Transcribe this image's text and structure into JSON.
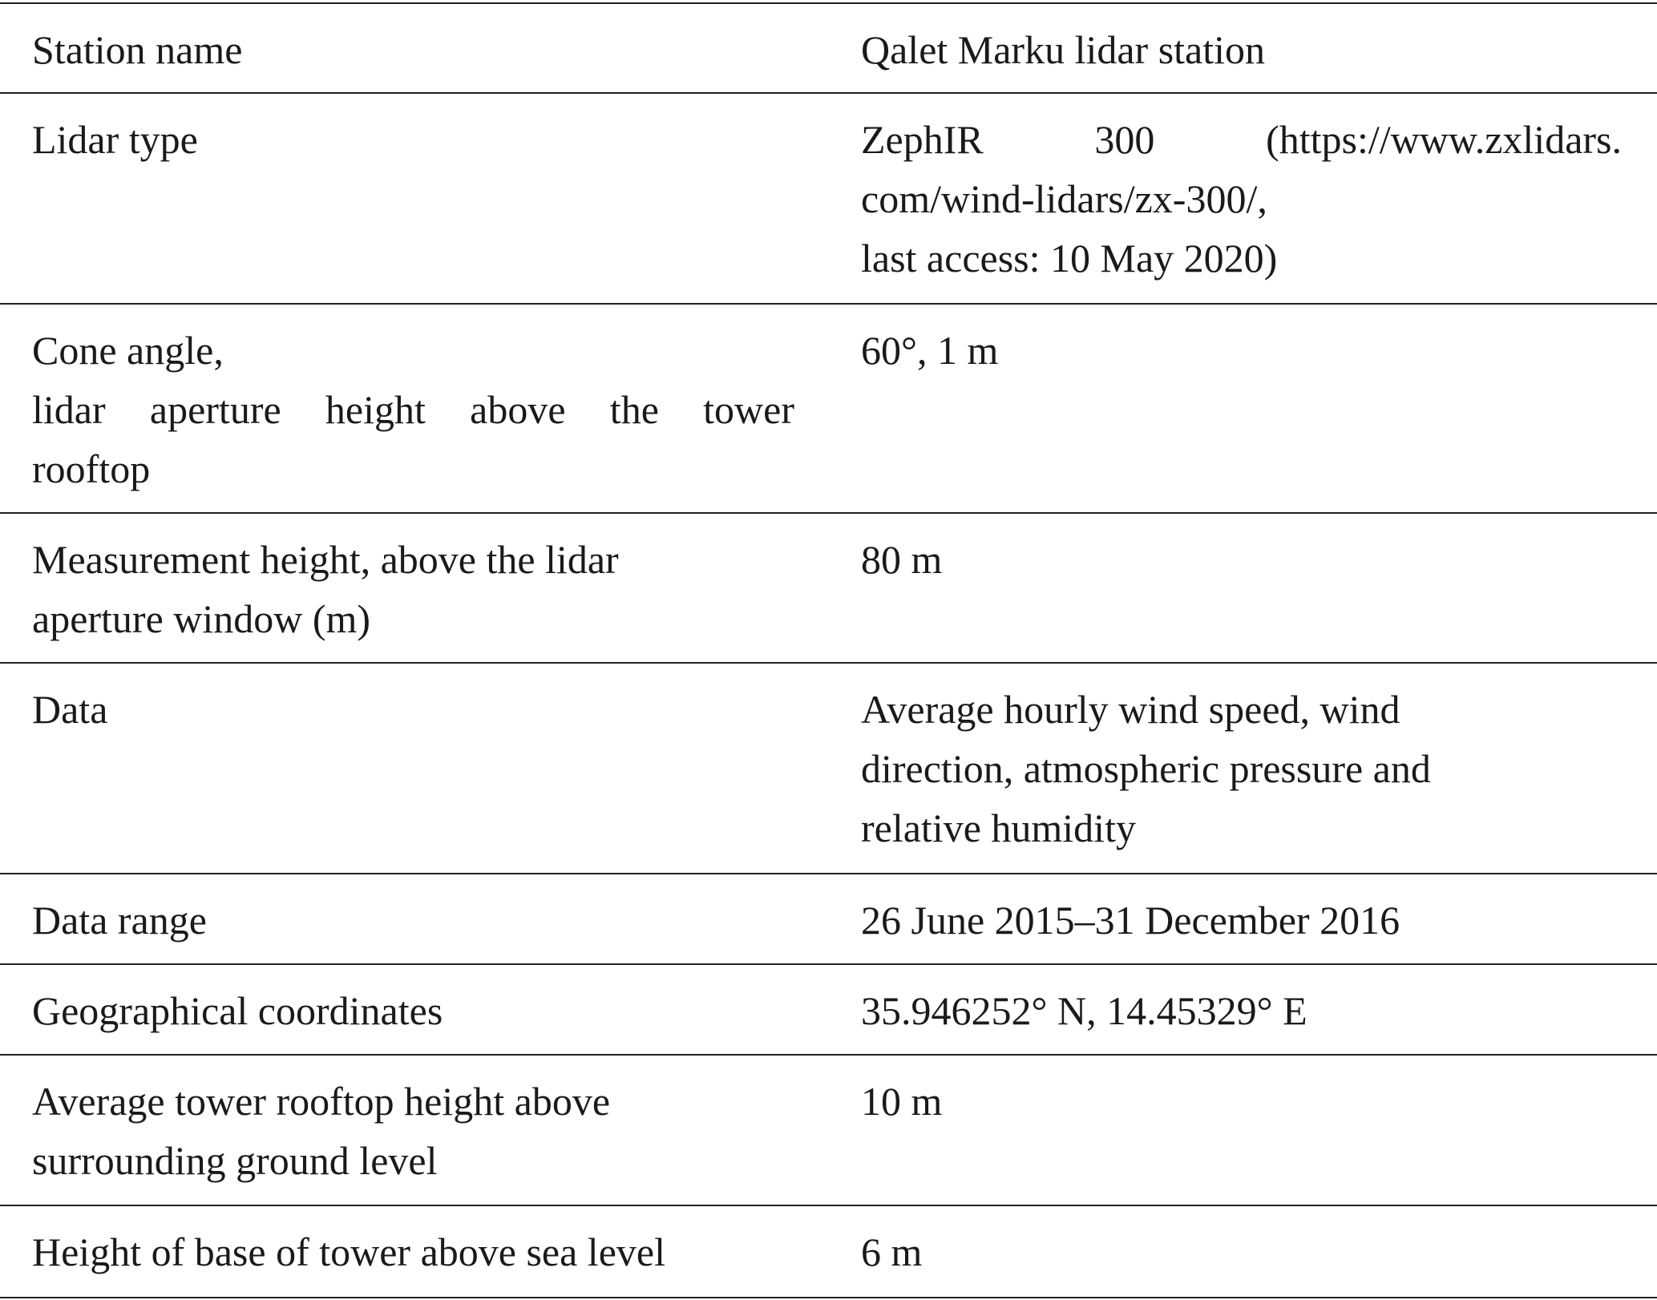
{
  "table": {
    "rows": [
      [
        [
          "Station name"
        ],
        [
          "Qalet Marku lidar station"
        ]
      ],
      [
        [
          "Lidar type"
        ],
        [
          "ZephIR 300 (https://www.zxlidars.",
          "com/wind-lidars/zx-300/,",
          "last access: 10 May 2020)"
        ]
      ],
      [
        [
          "Cone angle,",
          "lidar aperture height above the tower",
          "rooftop"
        ],
        [
          "60°, 1 m"
        ]
      ],
      [
        [
          "Measurement height, above the lidar",
          "aperture window (m)"
        ],
        [
          "80 m"
        ]
      ],
      [
        [
          "Data"
        ],
        [
          "Average hourly wind speed, wind",
          "direction, atmospheric pressure and",
          "relative humidity"
        ]
      ],
      [
        [
          "Data range"
        ],
        [
          "26 June 2015–31 December 2016"
        ]
      ],
      [
        [
          "Geographical coordinates"
        ],
        [
          "35.946252° N, 14.45329° E"
        ]
      ],
      [
        [
          "Average tower rooftop height above",
          "surrounding ground level"
        ],
        [
          "10 m"
        ]
      ],
      [
        [
          "Height of base of tower above sea level"
        ],
        [
          "6 m"
        ]
      ]
    ]
  }
}
